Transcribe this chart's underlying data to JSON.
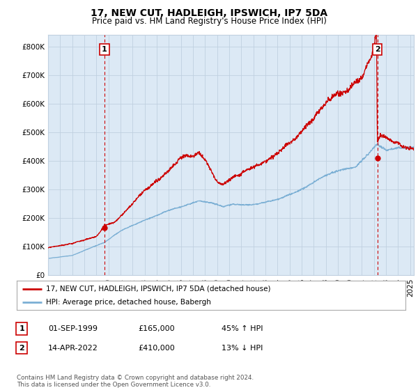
{
  "title": "17, NEW CUT, HADLEIGH, IPSWICH, IP7 5DA",
  "subtitle": "Price paid vs. HM Land Registry's House Price Index (HPI)",
  "ytick_values": [
    0,
    100000,
    200000,
    300000,
    400000,
    500000,
    600000,
    700000,
    800000
  ],
  "ylim": [
    0,
    840000
  ],
  "xlim_start": 1995.0,
  "xlim_end": 2025.3,
  "red_line_color": "#cc0000",
  "blue_line_color": "#7bafd4",
  "chart_bg_color": "#dce9f5",
  "marker1_date": 1999.67,
  "marker1_value": 165000,
  "marker2_date": 2022.28,
  "marker2_value": 410000,
  "vline1_x": 1999.67,
  "vline2_x": 2022.28,
  "annotation1_label": "1",
  "annotation2_label": "2",
  "legend_red_label": "17, NEW CUT, HADLEIGH, IPSWICH, IP7 5DA (detached house)",
  "legend_blue_label": "HPI: Average price, detached house, Babergh",
  "table_rows": [
    {
      "num": "1",
      "date": "01-SEP-1999",
      "price": "£165,000",
      "hpi": "45% ↑ HPI"
    },
    {
      "num": "2",
      "date": "14-APR-2022",
      "price": "£410,000",
      "hpi": "13% ↓ HPI"
    }
  ],
  "footer": "Contains HM Land Registry data © Crown copyright and database right 2024.\nThis data is licensed under the Open Government Licence v3.0.",
  "background_color": "#ffffff",
  "grid_color": "#c0d0e0",
  "title_fontsize": 10,
  "subtitle_fontsize": 8.5,
  "tick_fontsize": 7.5
}
